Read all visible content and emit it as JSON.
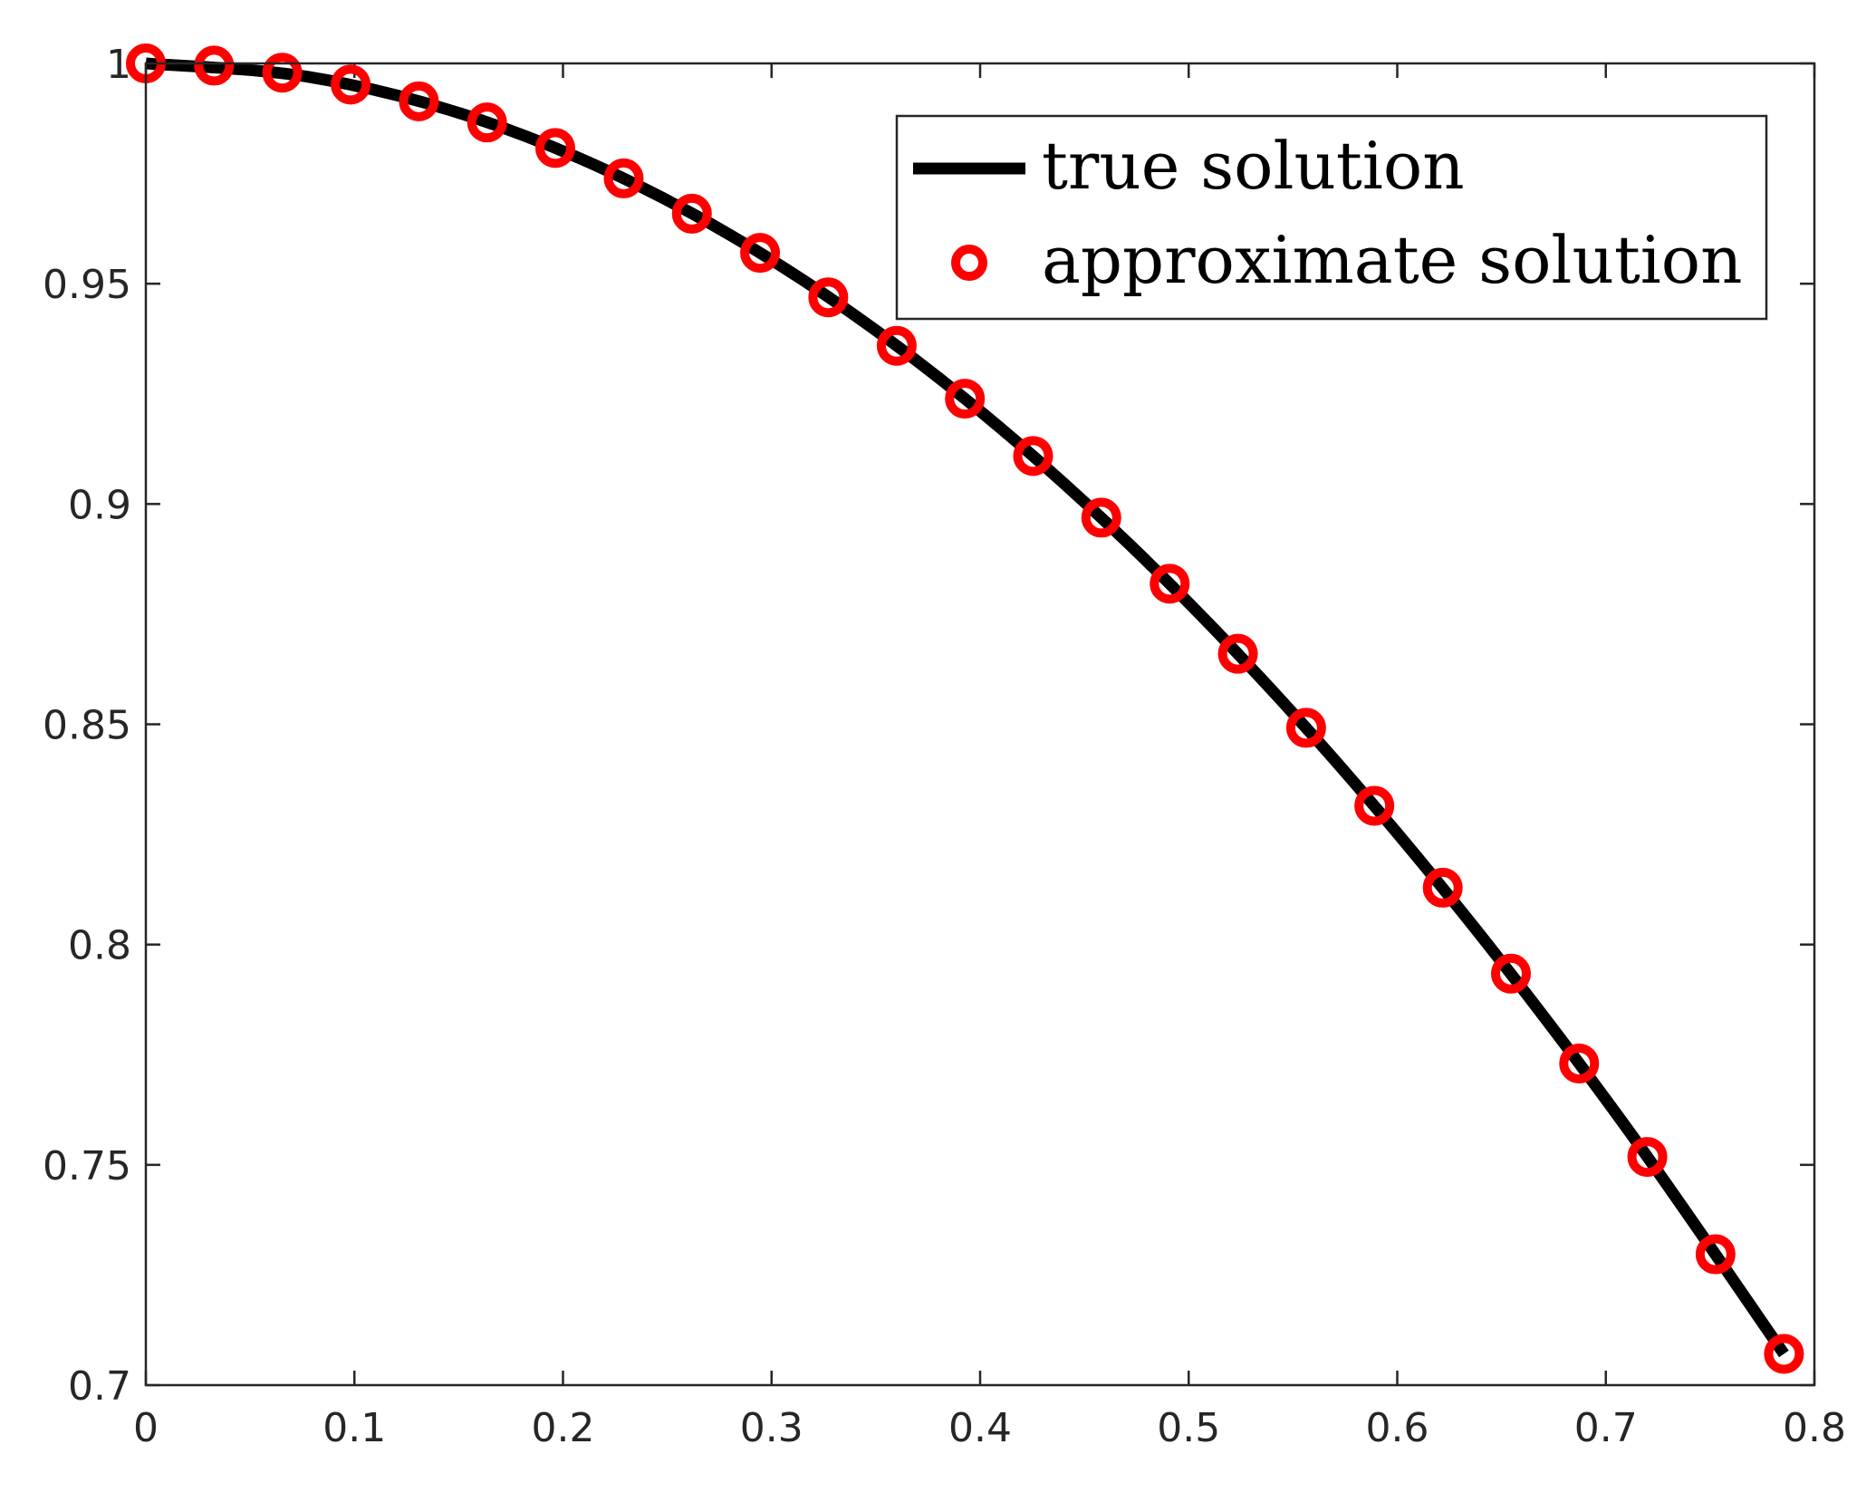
{
  "chart_data": {
    "type": "line",
    "title": "",
    "xlabel": "",
    "ylabel": "",
    "xlim": [
      0,
      0.8
    ],
    "ylim": [
      0.7,
      1.0
    ],
    "xticks": [
      0,
      0.1,
      0.2,
      0.3,
      0.4,
      0.5,
      0.6,
      0.7,
      0.8
    ],
    "xtick_labels": [
      "0",
      "0.1",
      "0.2",
      "0.3",
      "0.4",
      "0.5",
      "0.6",
      "0.7",
      "0.8"
    ],
    "yticks": [
      0.7,
      0.75,
      0.8,
      0.85,
      0.9,
      0.95,
      1.0
    ],
    "ytick_labels": [
      "0.7",
      "0.75",
      "0.8",
      "0.85",
      "0.9",
      "0.95",
      "1"
    ],
    "grid": false,
    "legend_position": "top-right",
    "series": [
      {
        "name": "true solution",
        "style": "solid-line",
        "color": "#000000",
        "x": [
          0,
          0.0785,
          0.1571,
          0.2356,
          0.3142,
          0.3927,
          0.4712,
          0.5498,
          0.6283,
          0.7069,
          0.7854
        ],
        "y": [
          1.0,
          0.9969,
          0.9877,
          0.9724,
          0.9511,
          0.9239,
          0.891,
          0.8526,
          0.809,
          0.7604,
          0.7071
        ]
      },
      {
        "name": "approximate solution",
        "style": "circle-markers",
        "color": "#ff0000",
        "x": [
          0,
          0.0327,
          0.0654,
          0.0982,
          0.1309,
          0.1636,
          0.1963,
          0.2291,
          0.2618,
          0.2945,
          0.3272,
          0.36,
          0.3927,
          0.4254,
          0.4581,
          0.4909,
          0.5236,
          0.5563,
          0.589,
          0.6218,
          0.6545,
          0.6872,
          0.7199,
          0.7526,
          0.7854
        ],
        "y": [
          1.0,
          0.9995,
          0.9979,
          0.9952,
          0.9914,
          0.9866,
          0.9808,
          0.9739,
          0.9659,
          0.957,
          0.9469,
          0.9359,
          0.9239,
          0.9109,
          0.8969,
          0.8819,
          0.866,
          0.8492,
          0.8315,
          0.8129,
          0.7934,
          0.773,
          0.7518,
          0.7297,
          0.7071
        ]
      }
    ]
  }
}
